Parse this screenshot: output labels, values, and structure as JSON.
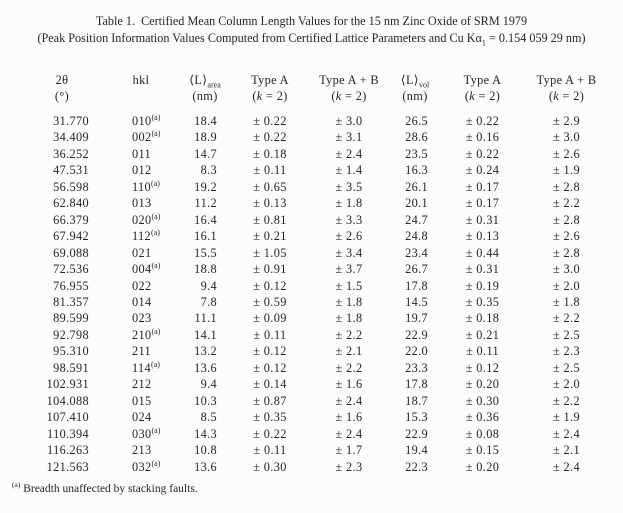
{
  "caption": {
    "line1": "Table 1.  Certified Mean Column Length Values for the 15 nm Zinc Oxide of SRM 1979",
    "line2_pre": "(Peak Position Information Values Computed from Certified Lattice Parameters and Cu Kα",
    "line2_sub": "1",
    "line2_post": " = 0.154 059 29 nm)"
  },
  "table": {
    "columns": [
      {
        "id": "two-theta",
        "line1": "2θ",
        "line2": "(°)"
      },
      {
        "id": "hkl",
        "line1": "hkl",
        "line2": ""
      },
      {
        "id": "l-area",
        "line1": "⟨L⟩",
        "line1_sub": "area",
        "line2": "(nm)"
      },
      {
        "id": "type-a-area",
        "line1": "Type A",
        "line2": "(k = 2)",
        "line2_italic_k": true
      },
      {
        "id": "type-ab-area",
        "line1": "Type A + B",
        "line2": "(k = 2)",
        "line2_italic_k": true
      },
      {
        "id": "l-vol",
        "line1": "⟨L⟩",
        "line1_sub": "vol",
        "line2": "(nm)"
      },
      {
        "id": "type-a-vol",
        "line1": "Type A",
        "line2": "(k = 2)",
        "line2_italic_k": true
      },
      {
        "id": "type-ab-vol",
        "line1": "Type A + B",
        "line2": "(k = 2)",
        "line2_italic_k": true
      }
    ],
    "rows": [
      {
        "two_theta": "31.770",
        "hkl": "010",
        "hkl_note": true,
        "l_area": "18.4",
        "type_a_area": "± 0.22",
        "type_ab_area": "± 3.0",
        "l_vol": "26.5",
        "type_a_vol": "± 0.22",
        "type_ab_vol": "± 2.9"
      },
      {
        "two_theta": "34.409",
        "hkl": "002",
        "hkl_note": true,
        "l_area": "18.9",
        "type_a_area": "± 0.22",
        "type_ab_area": "± 3.1",
        "l_vol": "28.6",
        "type_a_vol": "± 0.16",
        "type_ab_vol": "± 3.0"
      },
      {
        "two_theta": "36.252",
        "hkl": "011",
        "hkl_note": false,
        "l_area": "14.7",
        "type_a_area": "± 0.18",
        "type_ab_area": "± 2.4",
        "l_vol": "23.5",
        "type_a_vol": "± 0.22",
        "type_ab_vol": "± 2.6"
      },
      {
        "two_theta": "47.531",
        "hkl": "012",
        "hkl_note": false,
        "l_area": "8.3",
        "type_a_area": "± 0.11",
        "type_ab_area": "± 1.4",
        "l_vol": "16.3",
        "type_a_vol": "± 0.24",
        "type_ab_vol": "± 1.9"
      },
      {
        "two_theta": "56.598",
        "hkl": "110",
        "hkl_note": true,
        "l_area": "19.2",
        "type_a_area": "± 0.65",
        "type_ab_area": "± 3.5",
        "l_vol": "26.1",
        "type_a_vol": "± 0.17",
        "type_ab_vol": "± 2.8"
      },
      {
        "two_theta": "62.840",
        "hkl": "013",
        "hkl_note": false,
        "l_area": "11.2",
        "type_a_area": "± 0.13",
        "type_ab_area": "± 1.8",
        "l_vol": "20.1",
        "type_a_vol": "± 0.17",
        "type_ab_vol": "± 2.2"
      },
      {
        "two_theta": "66.379",
        "hkl": "020",
        "hkl_note": true,
        "l_area": "16.4",
        "type_a_area": "± 0.81",
        "type_ab_area": "± 3.3",
        "l_vol": "24.7",
        "type_a_vol": "± 0.31",
        "type_ab_vol": "± 2.8"
      },
      {
        "two_theta": "67.942",
        "hkl": "112",
        "hkl_note": true,
        "l_area": "16.1",
        "type_a_area": "± 0.21",
        "type_ab_area": "± 2.6",
        "l_vol": "24.8",
        "type_a_vol": "± 0.13",
        "type_ab_vol": "± 2.6"
      },
      {
        "two_theta": "69.088",
        "hkl": "021",
        "hkl_note": false,
        "l_area": "15.5",
        "type_a_area": "± 1.05",
        "type_ab_area": "± 3.4",
        "l_vol": "23.4",
        "type_a_vol": "± 0.44",
        "type_ab_vol": "± 2.8"
      },
      {
        "two_theta": "72.536",
        "hkl": "004",
        "hkl_note": true,
        "l_area": "18.8",
        "type_a_area": "± 0.91",
        "type_ab_area": "± 3.7",
        "l_vol": "26.7",
        "type_a_vol": "± 0.31",
        "type_ab_vol": "± 3.0"
      },
      {
        "two_theta": "76.955",
        "hkl": "022",
        "hkl_note": false,
        "l_area": "9.4",
        "type_a_area": "± 0.12",
        "type_ab_area": "± 1.5",
        "l_vol": "17.8",
        "type_a_vol": "± 0.19",
        "type_ab_vol": "± 2.0"
      },
      {
        "two_theta": "81.357",
        "hkl": "014",
        "hkl_note": false,
        "l_area": "7.8",
        "type_a_area": "± 0.59",
        "type_ab_area": "± 1.8",
        "l_vol": "14.5",
        "type_a_vol": "± 0.35",
        "type_ab_vol": "± 1.8"
      },
      {
        "two_theta": "89.599",
        "hkl": "023",
        "hkl_note": false,
        "l_area": "11.1",
        "type_a_area": "± 0.09",
        "type_ab_area": "± 1.8",
        "l_vol": "19.7",
        "type_a_vol": "± 0.18",
        "type_ab_vol": "± 2.2"
      },
      {
        "two_theta": "92.798",
        "hkl": "210",
        "hkl_note": true,
        "l_area": "14.1",
        "type_a_area": "± 0.11",
        "type_ab_area": "± 2.2",
        "l_vol": "22.9",
        "type_a_vol": "± 0.21",
        "type_ab_vol": "± 2.5"
      },
      {
        "two_theta": "95.310",
        "hkl": "211",
        "hkl_note": false,
        "l_area": "13.2",
        "type_a_area": "± 0.12",
        "type_ab_area": "± 2.1",
        "l_vol": "22.0",
        "type_a_vol": "± 0.11",
        "type_ab_vol": "± 2.3"
      },
      {
        "two_theta": "98.591",
        "hkl": "114",
        "hkl_note": true,
        "l_area": "13.6",
        "type_a_area": "± 0.12",
        "type_ab_area": "± 2.2",
        "l_vol": "23.3",
        "type_a_vol": "± 0.12",
        "type_ab_vol": "± 2.5"
      },
      {
        "two_theta": "102.931",
        "hkl": "212",
        "hkl_note": false,
        "l_area": "9.4",
        "type_a_area": "± 0.14",
        "type_ab_area": "± 1.6",
        "l_vol": "17.8",
        "type_a_vol": "± 0.20",
        "type_ab_vol": "± 2.0"
      },
      {
        "two_theta": "104.088",
        "hkl": "015",
        "hkl_note": false,
        "l_area": "10.3",
        "type_a_area": "± 0.87",
        "type_ab_area": "± 2.4",
        "l_vol": "18.7",
        "type_a_vol": "± 0.30",
        "type_ab_vol": "± 2.2"
      },
      {
        "two_theta": "107.410",
        "hkl": "024",
        "hkl_note": false,
        "l_area": "8.5",
        "type_a_area": "± 0.35",
        "type_ab_area": "± 1.6",
        "l_vol": "15.3",
        "type_a_vol": "± 0.36",
        "type_ab_vol": "± 1.9"
      },
      {
        "two_theta": "110.394",
        "hkl": "030",
        "hkl_note": true,
        "l_area": "14.3",
        "type_a_area": "± 0.22",
        "type_ab_area": "± 2.4",
        "l_vol": "22.9",
        "type_a_vol": "± 0.08",
        "type_ab_vol": "± 2.4"
      },
      {
        "two_theta": "116.263",
        "hkl": "213",
        "hkl_note": false,
        "l_area": "10.8",
        "type_a_area": "± 0.11",
        "type_ab_area": "± 1.7",
        "l_vol": "19.4",
        "type_a_vol": "± 0.15",
        "type_ab_vol": "± 2.1"
      },
      {
        "two_theta": "121.563",
        "hkl": "032",
        "hkl_note": true,
        "l_area": "13.6",
        "type_a_area": "± 0.30",
        "type_ab_area": "± 2.3",
        "l_vol": "22.3",
        "type_a_vol": "± 0.20",
        "type_ab_vol": "± 2.4"
      }
    ]
  },
  "footnote": {
    "marker": "(a)",
    "text": "Breadth unaffected by stacking faults."
  }
}
